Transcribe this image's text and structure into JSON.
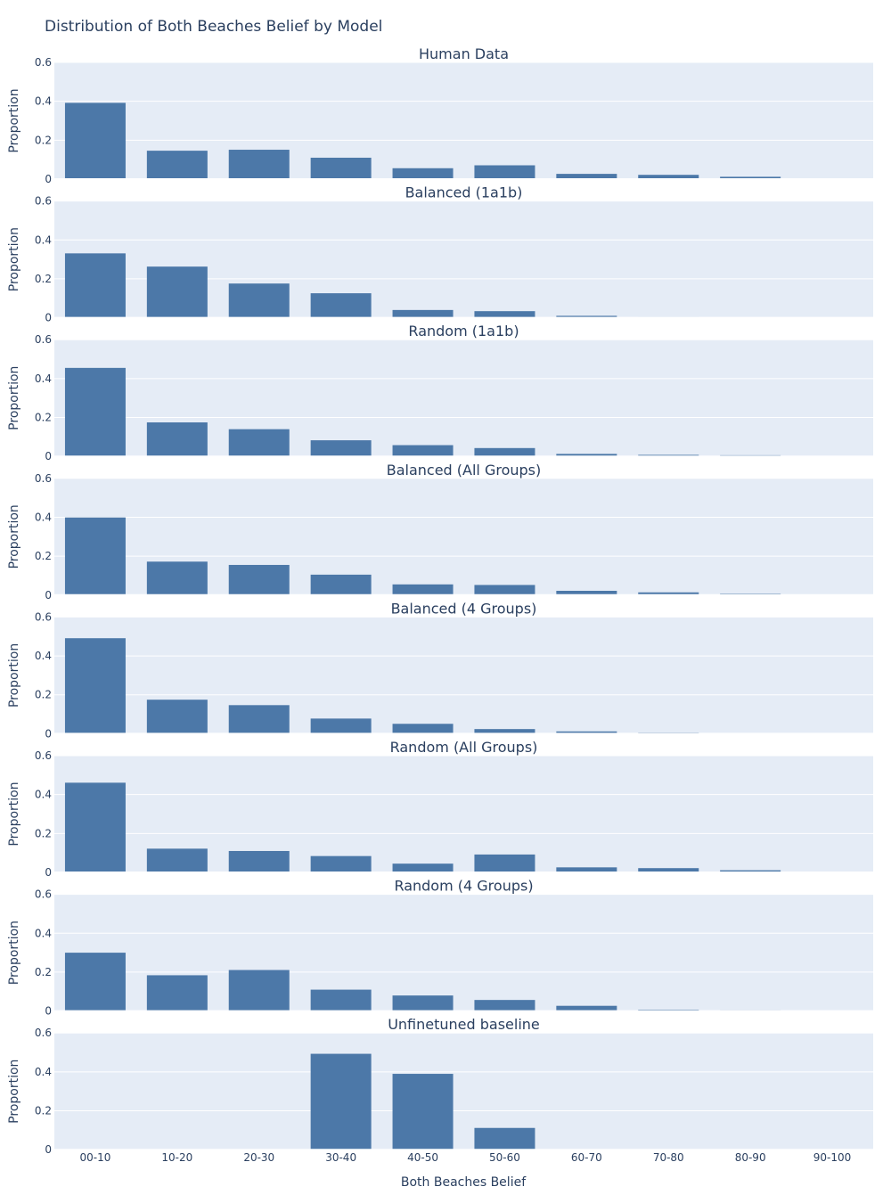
{
  "chart_data": {
    "type": "bar",
    "title": "Distribution of Both Beaches Belief by Model",
    "xlabel": "Both Beaches Belief",
    "ylabel": "Proportion",
    "ylim": [
      0,
      0.6
    ],
    "yticks": [
      "0",
      "0.2",
      "0.4",
      "0.6"
    ],
    "categories": [
      "00-10",
      "10-20",
      "20-30",
      "30-40",
      "40-50",
      "50-60",
      "60-70",
      "70-80",
      "80-90",
      "90-100"
    ],
    "grid": true,
    "bar_color": "#4c78a8",
    "plot_bg": "#e5ecf6",
    "panels": [
      {
        "title": "Human Data",
        "values": [
          0.392,
          0.146,
          0.151,
          0.11,
          0.056,
          0.071,
          0.027,
          0.022,
          0.012,
          0.003
        ]
      },
      {
        "title": "Balanced (1a1b)",
        "values": [
          0.331,
          0.263,
          0.176,
          0.126,
          0.04,
          0.034,
          0.01,
          0.003,
          0.002,
          0.001
        ]
      },
      {
        "title": "Random (1a1b)",
        "values": [
          0.455,
          0.175,
          0.14,
          0.083,
          0.058,
          0.043,
          0.013,
          0.008,
          0.006,
          0.002
        ]
      },
      {
        "title": "Balanced (All Groups)",
        "values": [
          0.399,
          0.172,
          0.155,
          0.105,
          0.055,
          0.052,
          0.022,
          0.014,
          0.007,
          0.003
        ]
      },
      {
        "title": "Balanced (4 Groups)",
        "values": [
          0.491,
          0.175,
          0.147,
          0.078,
          0.051,
          0.024,
          0.012,
          0.006,
          0.003,
          0.002
        ]
      },
      {
        "title": "Random (All Groups)",
        "values": [
          0.461,
          0.122,
          0.11,
          0.084,
          0.045,
          0.092,
          0.026,
          0.022,
          0.011,
          0.002
        ]
      },
      {
        "title": "Random (4 Groups)",
        "values": [
          0.3,
          0.184,
          0.211,
          0.11,
          0.08,
          0.057,
          0.027,
          0.007,
          0.004,
          0.002
        ]
      },
      {
        "title": "Unfinetuned baseline",
        "values": [
          0.0,
          0.0,
          0.003,
          0.493,
          0.39,
          0.112,
          0.003,
          0.0,
          0.0,
          0.0
        ]
      }
    ]
  }
}
